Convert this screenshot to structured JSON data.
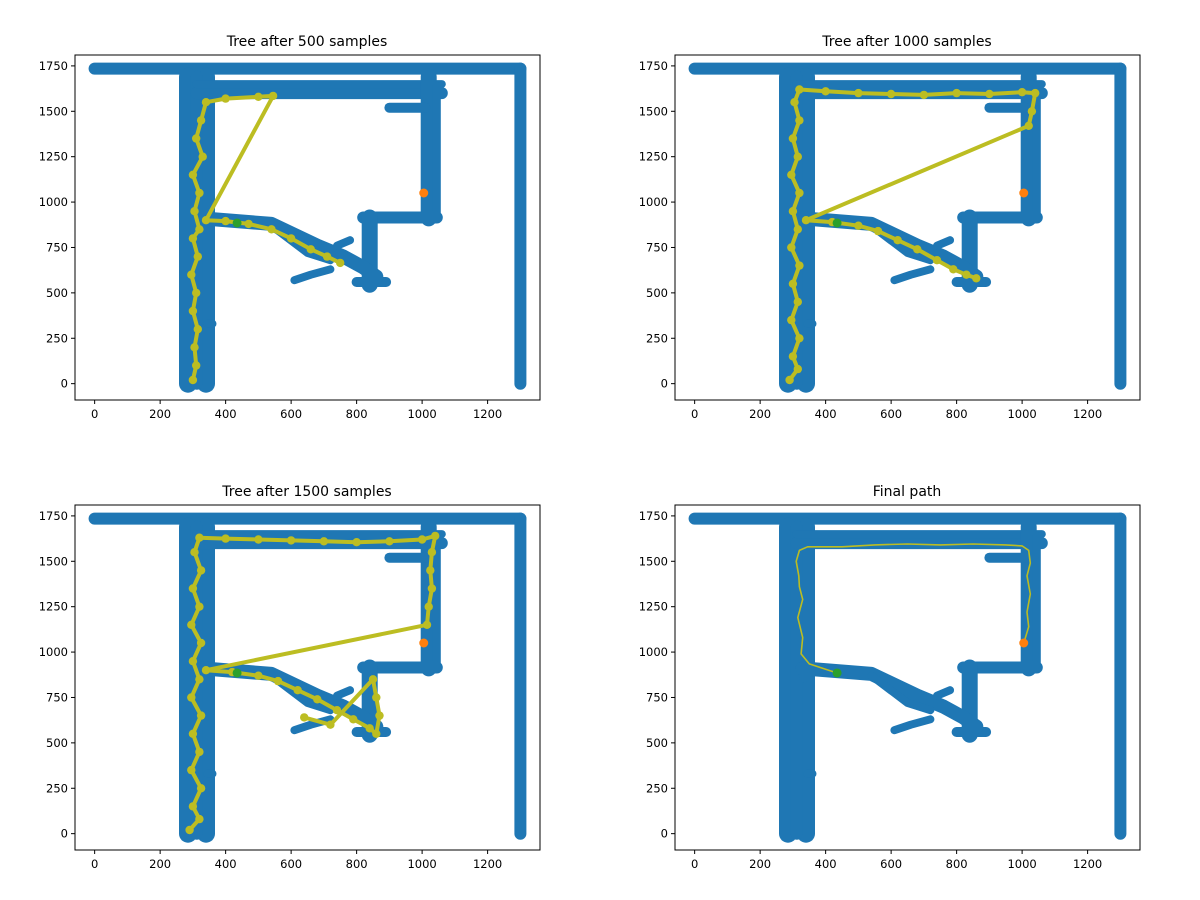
{
  "chart_data": [
    {
      "type": "scatter",
      "title": "Tree after 500 samples",
      "xlabel": "",
      "ylabel": "",
      "xlim": [
        -60,
        1360
      ],
      "ylim": [
        -90,
        1810
      ],
      "xticks": [
        "0",
        "200",
        "400",
        "600",
        "800",
        "1000",
        "1200"
      ],
      "yticks": [
        "0",
        "250",
        "500",
        "750",
        "1000",
        "1250",
        "1500",
        "1750"
      ],
      "grid": false,
      "colors": {
        "map": "#1f77b4",
        "tree": "#bcbd22",
        "start": "#2ca02c",
        "goal": "#ff7f0e"
      },
      "start": [
        435,
        885
      ],
      "goal": [
        1005,
        1050
      ],
      "tree": [
        [
          300,
          20
        ],
        [
          310,
          100
        ],
        [
          305,
          200
        ],
        [
          315,
          300
        ],
        [
          300,
          400
        ],
        [
          310,
          500
        ],
        [
          295,
          600
        ],
        [
          315,
          700
        ],
        [
          300,
          800
        ],
        [
          320,
          850
        ],
        [
          305,
          950
        ],
        [
          320,
          1050
        ],
        [
          300,
          1150
        ],
        [
          330,
          1250
        ],
        [
          310,
          1350
        ],
        [
          325,
          1450
        ],
        [
          340,
          1550
        ],
        [
          400,
          1570
        ],
        [
          500,
          1580
        ],
        [
          545,
          1585
        ],
        [
          340,
          900
        ],
        [
          400,
          895
        ],
        [
          470,
          880
        ],
        [
          540,
          850
        ],
        [
          600,
          800
        ],
        [
          660,
          740
        ],
        [
          710,
          700
        ],
        [
          750,
          665
        ]
      ]
    },
    {
      "type": "scatter",
      "title": "Tree after 1000 samples",
      "xlabel": "",
      "ylabel": "",
      "xlim": [
        -60,
        1360
      ],
      "ylim": [
        -90,
        1810
      ],
      "xticks": [
        "0",
        "200",
        "400",
        "600",
        "800",
        "1000",
        "1200"
      ],
      "yticks": [
        "0",
        "250",
        "500",
        "750",
        "1000",
        "1250",
        "1500",
        "1750"
      ],
      "grid": false,
      "colors": {
        "map": "#1f77b4",
        "tree": "#bcbd22",
        "start": "#2ca02c",
        "goal": "#ff7f0e"
      },
      "start": [
        435,
        885
      ],
      "goal": [
        1005,
        1050
      ],
      "tree": [
        [
          290,
          20
        ],
        [
          315,
          80
        ],
        [
          300,
          150
        ],
        [
          320,
          250
        ],
        [
          295,
          350
        ],
        [
          315,
          450
        ],
        [
          300,
          550
        ],
        [
          320,
          650
        ],
        [
          295,
          750
        ],
        [
          315,
          850
        ],
        [
          300,
          950
        ],
        [
          320,
          1050
        ],
        [
          295,
          1150
        ],
        [
          315,
          1250
        ],
        [
          300,
          1350
        ],
        [
          320,
          1450
        ],
        [
          305,
          1550
        ],
        [
          320,
          1620
        ],
        [
          400,
          1610
        ],
        [
          500,
          1600
        ],
        [
          600,
          1595
        ],
        [
          700,
          1590
        ],
        [
          800,
          1600
        ],
        [
          900,
          1595
        ],
        [
          1000,
          1605
        ],
        [
          1040,
          1600
        ],
        [
          1030,
          1500
        ],
        [
          1020,
          1420
        ],
        [
          340,
          900
        ],
        [
          420,
          890
        ],
        [
          500,
          870
        ],
        [
          560,
          840
        ],
        [
          620,
          790
        ],
        [
          680,
          740
        ],
        [
          740,
          680
        ],
        [
          790,
          630
        ],
        [
          830,
          600
        ],
        [
          860,
          580
        ]
      ]
    },
    {
      "type": "scatter",
      "title": "Tree after 1500 samples",
      "xlabel": "",
      "ylabel": "",
      "xlim": [
        -60,
        1360
      ],
      "ylim": [
        -90,
        1810
      ],
      "xticks": [
        "0",
        "200",
        "400",
        "600",
        "800",
        "1000",
        "1200"
      ],
      "yticks": [
        "0",
        "250",
        "500",
        "750",
        "1000",
        "1250",
        "1500",
        "1750"
      ],
      "grid": false,
      "colors": {
        "map": "#1f77b4",
        "tree": "#bcbd22",
        "start": "#2ca02c",
        "goal": "#ff7f0e"
      },
      "start": [
        435,
        885
      ],
      "goal": [
        1005,
        1050
      ],
      "tree": [
        [
          290,
          20
        ],
        [
          320,
          80
        ],
        [
          300,
          150
        ],
        [
          325,
          250
        ],
        [
          295,
          350
        ],
        [
          320,
          450
        ],
        [
          300,
          550
        ],
        [
          325,
          650
        ],
        [
          295,
          750
        ],
        [
          320,
          850
        ],
        [
          300,
          950
        ],
        [
          325,
          1050
        ],
        [
          295,
          1150
        ],
        [
          320,
          1250
        ],
        [
          300,
          1350
        ],
        [
          325,
          1450
        ],
        [
          305,
          1550
        ],
        [
          320,
          1630
        ],
        [
          400,
          1625
        ],
        [
          500,
          1620
        ],
        [
          600,
          1615
        ],
        [
          700,
          1610
        ],
        [
          800,
          1605
        ],
        [
          900,
          1610
        ],
        [
          1000,
          1620
        ],
        [
          1040,
          1640
        ],
        [
          1030,
          1550
        ],
        [
          1025,
          1450
        ],
        [
          1030,
          1350
        ],
        [
          1020,
          1250
        ],
        [
          1015,
          1150
        ],
        [
          340,
          900
        ],
        [
          420,
          890
        ],
        [
          500,
          870
        ],
        [
          560,
          840
        ],
        [
          620,
          790
        ],
        [
          680,
          740
        ],
        [
          740,
          680
        ],
        [
          790,
          630
        ],
        [
          840,
          580
        ],
        [
          860,
          550
        ],
        [
          870,
          650
        ],
        [
          860,
          750
        ],
        [
          850,
          850
        ],
        [
          720,
          600
        ],
        [
          640,
          640
        ]
      ]
    },
    {
      "type": "scatter",
      "title": "Final path",
      "xlabel": "",
      "ylabel": "",
      "xlim": [
        -60,
        1360
      ],
      "ylim": [
        -90,
        1810
      ],
      "xticks": [
        "0",
        "200",
        "400",
        "600",
        "800",
        "1000",
        "1200"
      ],
      "yticks": [
        "0",
        "250",
        "500",
        "750",
        "1000",
        "1250",
        "1500",
        "1750"
      ],
      "grid": false,
      "colors": {
        "map": "#1f77b4",
        "path": "#bcbd22",
        "start": "#2ca02c",
        "goal": "#ff7f0e"
      },
      "start": [
        435,
        885
      ],
      "goal": [
        1005,
        1050
      ],
      "path": [
        [
          435,
          885
        ],
        [
          400,
          905
        ],
        [
          350,
          935
        ],
        [
          325,
          990
        ],
        [
          330,
          1080
        ],
        [
          315,
          1190
        ],
        [
          330,
          1290
        ],
        [
          320,
          1360
        ],
        [
          318,
          1420
        ],
        [
          310,
          1500
        ],
        [
          320,
          1560
        ],
        [
          345,
          1580
        ],
        [
          450,
          1580
        ],
        [
          550,
          1590
        ],
        [
          650,
          1595
        ],
        [
          750,
          1590
        ],
        [
          850,
          1595
        ],
        [
          950,
          1590
        ],
        [
          1000,
          1585
        ],
        [
          1020,
          1560
        ],
        [
          1025,
          1490
        ],
        [
          1015,
          1420
        ],
        [
          1025,
          1320
        ],
        [
          1015,
          1220
        ],
        [
          1020,
          1140
        ],
        [
          1005,
          1050
        ]
      ]
    }
  ]
}
